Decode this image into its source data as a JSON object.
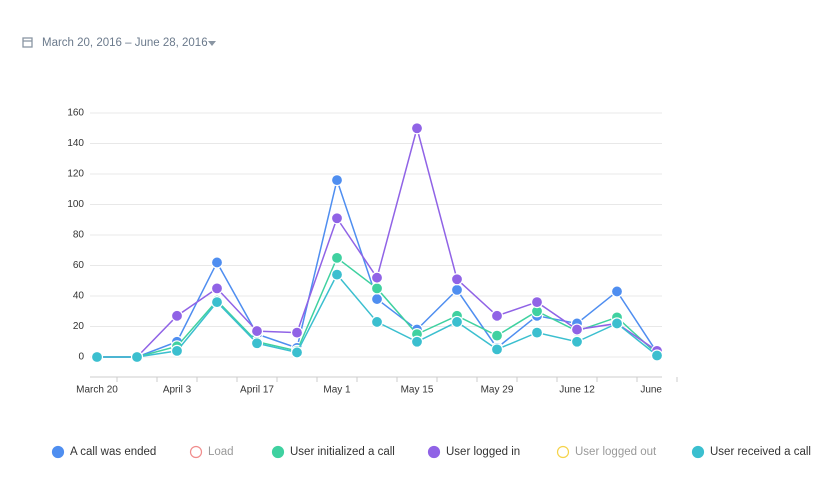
{
  "date_range": "March 20, 2016 – June 28, 2016",
  "chart_data": {
    "type": "line",
    "categories": [
      "March 20",
      null,
      "April 3",
      null,
      "April 17",
      null,
      "May 1",
      null,
      "May 15",
      null,
      "May 29",
      null,
      "June 12",
      null,
      "June"
    ],
    "series": [
      {
        "name": "A call was ended",
        "color": "#4f8ef0",
        "values": [
          0,
          0,
          10,
          62,
          15,
          6,
          116,
          38,
          18,
          44,
          6,
          27,
          22,
          43,
          3
        ]
      },
      {
        "name": "Load",
        "color": "#f08c8c",
        "hidden": true
      },
      {
        "name": "User initialized a call",
        "color": "#3fd1a0",
        "values": [
          0,
          0,
          7,
          37,
          10,
          4,
          65,
          45,
          15,
          27,
          14,
          30,
          17,
          26,
          2
        ]
      },
      {
        "name": "User logged in",
        "color": "#9063e6",
        "values": [
          0,
          0,
          27,
          45,
          17,
          16,
          91,
          52,
          150,
          51,
          27,
          36,
          18,
          22,
          4
        ]
      },
      {
        "name": "User logged out",
        "color": "#f5d34a",
        "hidden": true
      },
      {
        "name": "User received a call",
        "color": "#3bbfcf",
        "values": [
          0,
          0,
          4,
          36,
          9,
          3,
          54,
          23,
          10,
          23,
          5,
          16,
          10,
          22,
          1
        ]
      }
    ],
    "ylim": [
      0,
      160
    ],
    "yticks": [
      0,
      20,
      40,
      60,
      80,
      100,
      120,
      140,
      160
    ],
    "grid": true
  }
}
